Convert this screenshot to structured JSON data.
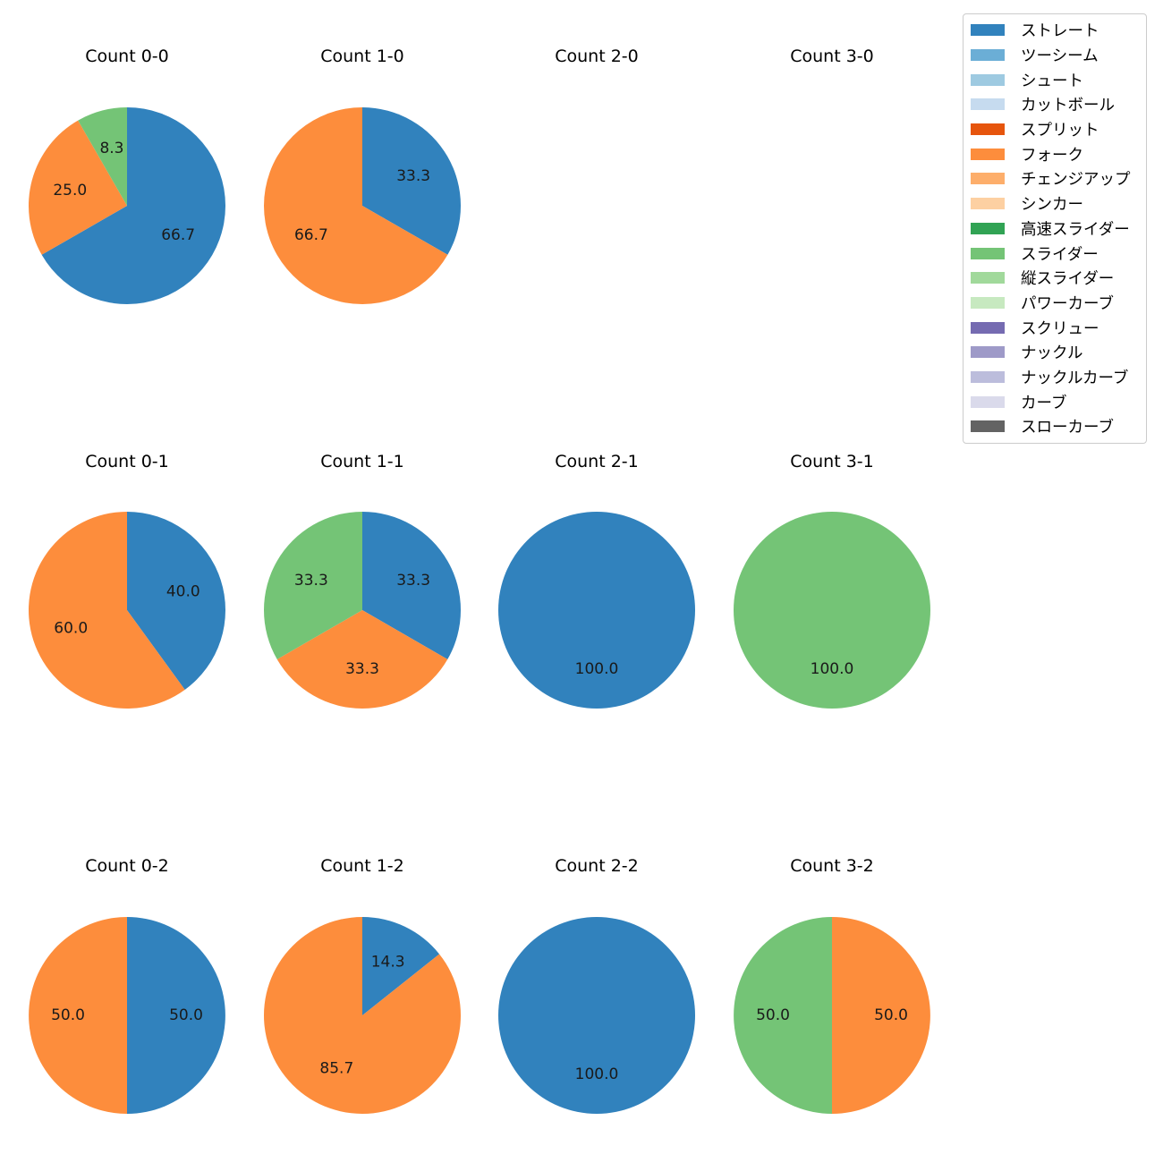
{
  "chart_data": {
    "type": "pie",
    "grid": false,
    "legend_position": "top-right",
    "legend": [
      {
        "name": "ストレート",
        "color": "#3182bd"
      },
      {
        "name": "ツーシーム",
        "color": "#6baed6"
      },
      {
        "name": "シュート",
        "color": "#9ecae1"
      },
      {
        "name": "カットボール",
        "color": "#c6dbef"
      },
      {
        "name": "スプリット",
        "color": "#e6550d"
      },
      {
        "name": "フォーク",
        "color": "#fd8d3c"
      },
      {
        "name": "チェンジアップ",
        "color": "#fdae6b"
      },
      {
        "name": "シンカー",
        "color": "#fdd0a2"
      },
      {
        "name": "高速スライダー",
        "color": "#31a354"
      },
      {
        "name": "スライダー",
        "color": "#74c476"
      },
      {
        "name": "縦スライダー",
        "color": "#a1d99b"
      },
      {
        "name": "パワーカーブ",
        "color": "#c7e9c0"
      },
      {
        "name": "スクリュー",
        "color": "#756bb1"
      },
      {
        "name": "ナックル",
        "color": "#9e9ac8"
      },
      {
        "name": "ナックルカーブ",
        "color": "#bcbddc"
      },
      {
        "name": "カーブ",
        "color": "#dadaeb"
      },
      {
        "name": "スローカーブ",
        "color": "#636363"
      }
    ],
    "pies": [
      {
        "title": "Count 0-0",
        "slices": [
          {
            "pitch": "ストレート",
            "value": 66.7,
            "label": "66.7"
          },
          {
            "pitch": "フォーク",
            "value": 25.0,
            "label": "25.0"
          },
          {
            "pitch": "スライダー",
            "value": 8.3,
            "label": "8.3"
          }
        ]
      },
      {
        "title": "Count 1-0",
        "slices": [
          {
            "pitch": "ストレート",
            "value": 33.3,
            "label": "33.3"
          },
          {
            "pitch": "フォーク",
            "value": 66.7,
            "label": "66.7"
          }
        ]
      },
      {
        "title": "Count 2-0",
        "slices": []
      },
      {
        "title": "Count 3-0",
        "slices": []
      },
      {
        "title": "Count 0-1",
        "slices": [
          {
            "pitch": "ストレート",
            "value": 40.0,
            "label": "40.0"
          },
          {
            "pitch": "フォーク",
            "value": 60.0,
            "label": "60.0"
          }
        ]
      },
      {
        "title": "Count 1-1",
        "slices": [
          {
            "pitch": "ストレート",
            "value": 33.3,
            "label": "33.3"
          },
          {
            "pitch": "フォーク",
            "value": 33.3,
            "label": "33.3"
          },
          {
            "pitch": "スライダー",
            "value": 33.3,
            "label": "33.3"
          }
        ]
      },
      {
        "title": "Count 2-1",
        "slices": [
          {
            "pitch": "ストレート",
            "value": 100.0,
            "label": "100.0"
          }
        ]
      },
      {
        "title": "Count 3-1",
        "slices": [
          {
            "pitch": "スライダー",
            "value": 100.0,
            "label": "100.0"
          }
        ]
      },
      {
        "title": "Count 0-2",
        "slices": [
          {
            "pitch": "ストレート",
            "value": 50.0,
            "label": "50.0"
          },
          {
            "pitch": "フォーク",
            "value": 50.0,
            "label": "50.0"
          }
        ]
      },
      {
        "title": "Count 1-2",
        "slices": [
          {
            "pitch": "ストレート",
            "value": 14.3,
            "label": "14.3"
          },
          {
            "pitch": "フォーク",
            "value": 85.7,
            "label": "85.7"
          }
        ]
      },
      {
        "title": "Count 2-2",
        "slices": [
          {
            "pitch": "ストレート",
            "value": 100.0,
            "label": "100.0"
          }
        ]
      },
      {
        "title": "Count 3-2",
        "slices": [
          {
            "pitch": "フォーク",
            "value": 50.0,
            "label": "50.0"
          },
          {
            "pitch": "スライダー",
            "value": 50.0,
            "label": "50.0"
          }
        ]
      }
    ]
  }
}
